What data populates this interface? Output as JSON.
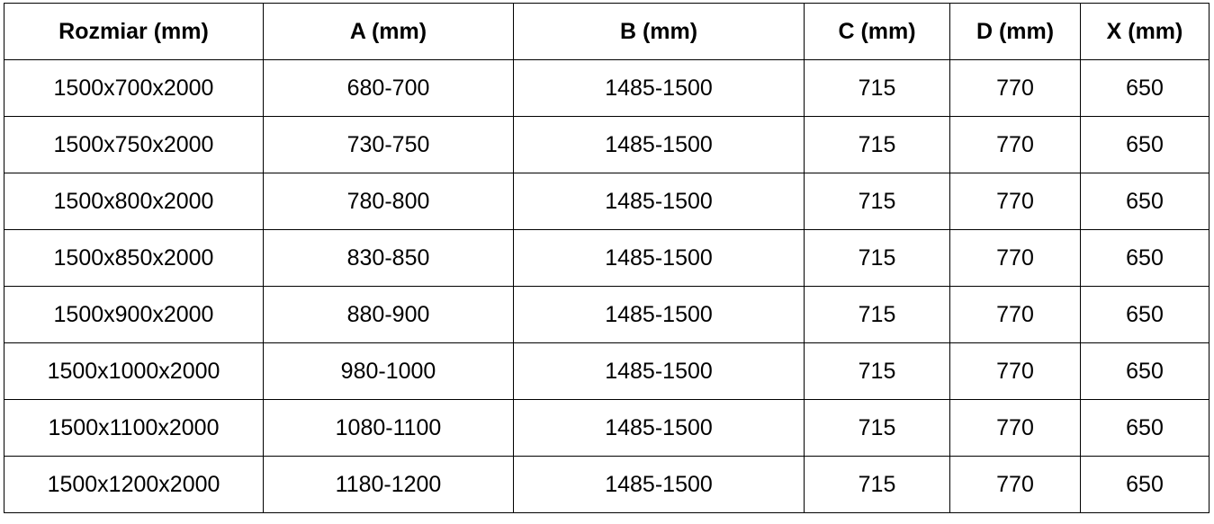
{
  "table": {
    "headers": [
      "Rozmiar (mm)",
      "A (mm)",
      "B (mm)",
      "C (mm)",
      "D (mm)",
      "X (mm)"
    ],
    "rows": [
      [
        "1500x700x2000",
        "680-700",
        "1485-1500",
        "715",
        "770",
        "650"
      ],
      [
        "1500x750x2000",
        "730-750",
        "1485-1500",
        "715",
        "770",
        "650"
      ],
      [
        "1500x800x2000",
        "780-800",
        "1485-1500",
        "715",
        "770",
        "650"
      ],
      [
        "1500x850x2000",
        "830-850",
        "1485-1500",
        "715",
        "770",
        "650"
      ],
      [
        "1500x900x2000",
        "880-900",
        "1485-1500",
        "715",
        "770",
        "650"
      ],
      [
        "1500x1000x2000",
        "980-1000",
        "1485-1500",
        "715",
        "770",
        "650"
      ],
      [
        "1500x1100x2000",
        "1080-1100",
        "1485-1500",
        "715",
        "770",
        "650"
      ],
      [
        "1500x1200x2000",
        "1180-1200",
        "1485-1500",
        "715",
        "770",
        "650"
      ]
    ]
  }
}
